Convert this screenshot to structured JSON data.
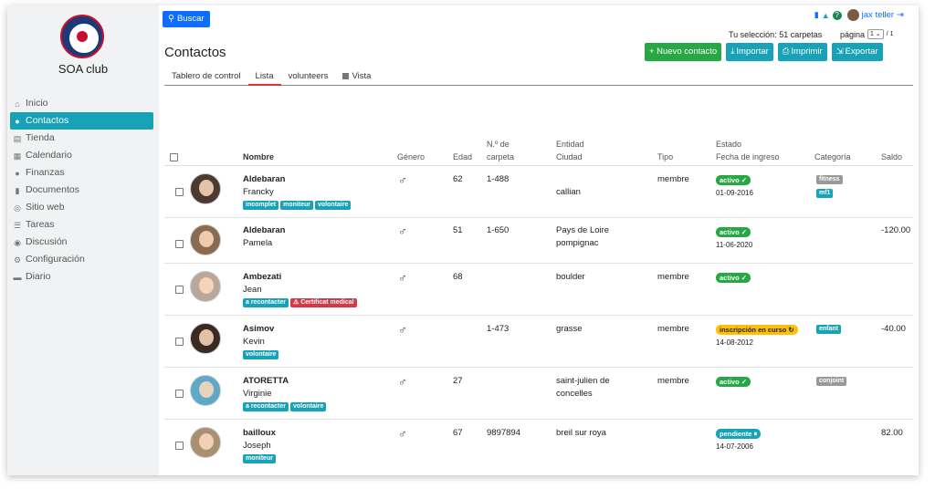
{
  "app": {
    "club_name": "SOA club",
    "search_label": "Buscar",
    "user_name": "jax teller"
  },
  "sidebar": {
    "items": [
      {
        "label": "Inicio",
        "icon": "home-icon",
        "glyph": "⌂"
      },
      {
        "label": "Contactos",
        "icon": "users-icon",
        "glyph": "👥"
      },
      {
        "label": "Tienda",
        "icon": "store-icon",
        "glyph": "▤"
      },
      {
        "label": "Calendario",
        "icon": "calendar-icon",
        "glyph": "▦"
      },
      {
        "label": "Finanzas",
        "icon": "piggy-bank-icon",
        "glyph": "●"
      },
      {
        "label": "Documentos",
        "icon": "file-icon",
        "glyph": "▮"
      },
      {
        "label": "Sitio web",
        "icon": "globe-icon",
        "glyph": "◎"
      },
      {
        "label": "Tareas",
        "icon": "list-icon",
        "glyph": "☰"
      },
      {
        "label": "Discusión",
        "icon": "comment-icon",
        "glyph": "◉"
      },
      {
        "label": "Configuración",
        "icon": "gear-icon",
        "glyph": "⚙"
      },
      {
        "label": "Diario",
        "icon": "book-icon",
        "glyph": "▬"
      }
    ]
  },
  "header": {
    "title": "Contactos",
    "selection_text": "Tu selección: 51 carpetas",
    "page_label": "página",
    "page_value": "1",
    "page_total": "/ 1",
    "new_contact": "+ Nuevo contacto",
    "import": "Importar",
    "print": "Imprimir",
    "export": "Exportar"
  },
  "tabs": {
    "dashboard": "Tablero de control",
    "list": "Lista",
    "volunteers": "volunteers",
    "view": "Vista"
  },
  "table": {
    "headers": {
      "name": "Nombre",
      "gender": "Género",
      "age": "Edad",
      "folder_no_1": "N.º de",
      "folder_no_2": "carpeta",
      "entity": "Entidad",
      "city": "Ciudad",
      "type": "Tipo",
      "status": "Estado",
      "join_date": "Fecha de ingreso",
      "category": "Categoría",
      "balance": "Saldo"
    },
    "rows": [
      {
        "last": "Aldebaran",
        "first": "Francky",
        "tags": [
          "incomplet",
          "moniteur",
          "volontaire"
        ],
        "age": "62",
        "folder": "1-488",
        "entity": "",
        "city": "callian",
        "type": "membre",
        "status": "activo ✓",
        "date": "01-09-2016",
        "category": "fitness",
        "category2": "mf1",
        "balance": ""
      },
      {
        "last": "Aldebaran",
        "first": "Pamela",
        "tags": [],
        "age": "51",
        "folder": "1-650",
        "entity": "Pays de Loire",
        "city": "pompignac",
        "type": "",
        "status": "activo ✓",
        "date": "11-06-2020",
        "category": "",
        "category2": "",
        "balance": "-120.00"
      },
      {
        "last": "Ambezati",
        "first": "Jean",
        "tags": [
          "a recontacter",
          "⚠ Certificat medical"
        ],
        "age": "68",
        "folder": "",
        "entity": "boulder",
        "city": "",
        "type": "membre",
        "status": "activo ✓",
        "date": "",
        "category": "",
        "category2": "",
        "balance": ""
      },
      {
        "last": "Asimov",
        "first": "Kevin",
        "tags": [
          "volontaire"
        ],
        "age": "",
        "folder": "1-473",
        "entity": "grasse",
        "city": "",
        "type": "membre",
        "status": "inscripción en curso ↻",
        "date": "14-08-2012",
        "category": "enfant",
        "category2": "",
        "balance": "-40.00"
      },
      {
        "last": "ATORETTA",
        "first": "Virginie",
        "tags": [
          "a recontacter",
          "volontaire"
        ],
        "age": "27",
        "folder": "",
        "entity": "saint-julien de",
        "city": "concelles",
        "type": "membre",
        "status": "activo ✓",
        "date": "",
        "category": "conjoint",
        "category2": "",
        "balance": ""
      },
      {
        "last": "bailloux",
        "first": "Joseph",
        "tags": [
          "moniteur"
        ],
        "age": "67",
        "folder": "9897894",
        "entity": "breil sur roya",
        "city": "",
        "type": "",
        "status": "pendiente ⏸",
        "date": "14-07-2006",
        "category": "",
        "category2": "",
        "balance": "82.00"
      }
    ]
  },
  "colors": {
    "primary": "#0d6efd",
    "teal": "#17a2b8",
    "green": "#28a745",
    "red": "#dc3545",
    "yellow": "#ffc107"
  }
}
